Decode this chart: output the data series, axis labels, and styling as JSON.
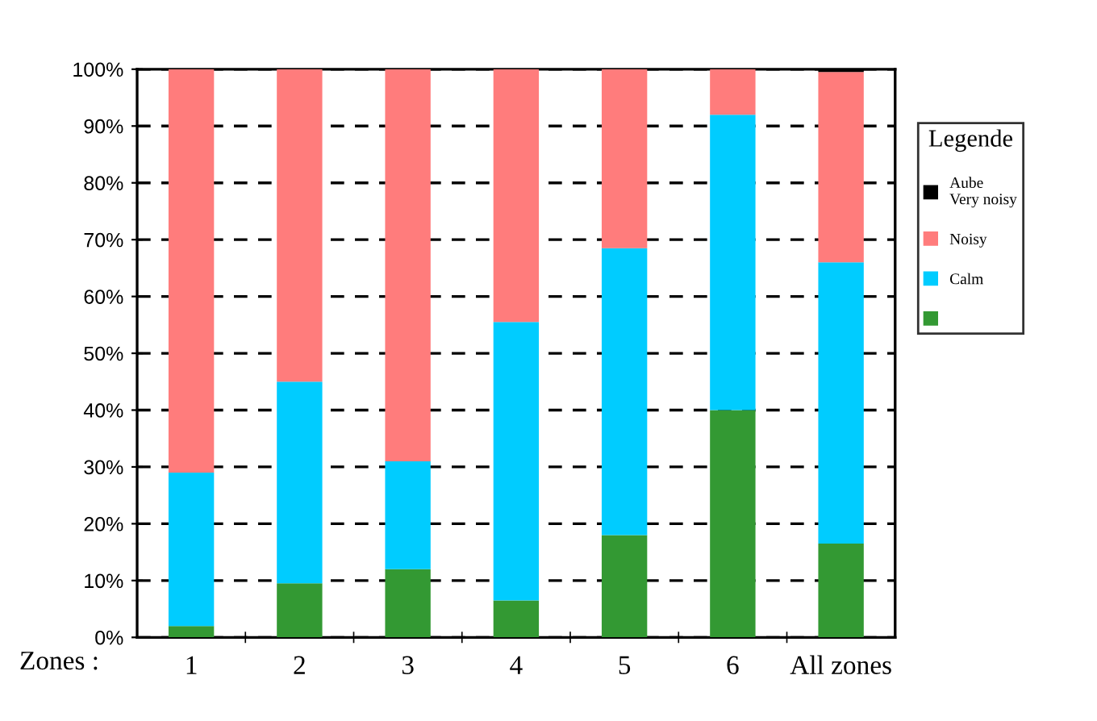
{
  "chart_data": {
    "type": "bar",
    "stacked": true,
    "xlabel": "Zones :",
    "legend_title": "Legende",
    "legend": "right",
    "categories": [
      "1",
      "2",
      "3",
      "4",
      "5",
      "6",
      "All zones"
    ],
    "series": [
      {
        "color": "#339933",
        "values": [
          2,
          9.5,
          12,
          6.5,
          18,
          40,
          16.5
        ]
      },
      {
        "name": "Calm",
        "color": "#00ccff",
        "values": [
          27,
          35.5,
          19,
          49,
          50.5,
          52,
          49.5
        ]
      },
      {
        "name": "Noisy",
        "color": "#ff7c7c",
        "values": [
          71,
          55,
          69,
          44.5,
          31.5,
          8,
          33.5
        ]
      },
      {
        "name": "Aube\nVery noisy",
        "color": "#000000",
        "values": [
          0,
          0,
          0,
          0,
          0,
          0,
          0.5
        ]
      }
    ],
    "ylim": [
      0,
      100
    ],
    "yticks": [
      {
        "value": 0,
        "label": "0%"
      },
      {
        "value": 10,
        "label": "10%"
      },
      {
        "value": 20,
        "label": "20%"
      },
      {
        "value": 30,
        "label": "30%"
      },
      {
        "value": 40,
        "label": "40%"
      },
      {
        "value": 50,
        "label": "50%"
      },
      {
        "value": 60,
        "label": "60%"
      },
      {
        "value": 70,
        "label": "70%"
      },
      {
        "value": 80,
        "label": "80%"
      },
      {
        "value": 90,
        "label": "90%"
      },
      {
        "value": 100,
        "label": "100%"
      }
    ],
    "grid": "y"
  }
}
